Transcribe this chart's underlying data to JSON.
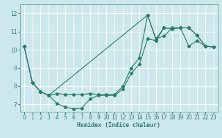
{
  "xlabel": "Humidex (Indice chaleur)",
  "bg_color": "#cde8ec",
  "grid_color": "#ffffff",
  "line_color": "#2d7d6e",
  "xlim": [
    -0.5,
    23.5
  ],
  "ylim": [
    6.6,
    12.5
  ],
  "xticks": [
    0,
    1,
    2,
    3,
    4,
    5,
    6,
    7,
    8,
    9,
    10,
    11,
    12,
    13,
    14,
    15,
    16,
    17,
    18,
    19,
    20,
    21,
    22,
    23
  ],
  "yticks": [
    7,
    8,
    9,
    10,
    11,
    12
  ],
  "curve1_x": [
    0,
    1,
    2,
    3,
    4,
    5,
    6,
    7,
    8,
    9,
    10,
    11,
    12,
    13,
    14,
    15,
    16,
    17,
    18,
    19,
    20,
    21,
    22,
    23
  ],
  "curve1_y": [
    10.2,
    8.2,
    7.7,
    7.5,
    7.05,
    6.85,
    6.75,
    6.8,
    7.3,
    7.5,
    7.5,
    7.5,
    7.85,
    8.7,
    9.2,
    10.6,
    10.5,
    11.2,
    11.15,
    11.2,
    10.2,
    10.5,
    10.2,
    10.15
  ],
  "curve2_x": [
    0,
    1,
    2,
    3,
    4,
    5,
    6,
    7,
    8,
    9,
    10,
    11,
    12,
    13,
    14,
    15,
    16,
    17,
    18,
    19,
    20,
    21,
    22,
    23
  ],
  "curve2_y": [
    10.2,
    8.2,
    7.7,
    7.5,
    7.6,
    7.55,
    7.55,
    7.55,
    7.6,
    7.55,
    7.55,
    7.55,
    8.0,
    9.0,
    9.55,
    11.9,
    10.6,
    10.75,
    11.2,
    11.2,
    11.2,
    10.8,
    10.2,
    10.15
  ],
  "curve3_x": [
    0,
    1,
    2,
    3,
    15,
    16,
    17,
    18,
    19,
    20,
    21,
    22,
    23
  ],
  "curve3_y": [
    10.2,
    8.2,
    7.7,
    7.5,
    11.9,
    10.6,
    11.2,
    11.15,
    11.2,
    11.2,
    10.8,
    10.2,
    10.15
  ],
  "marker": "D",
  "markersize": 2.2,
  "linewidth": 0.85,
  "tick_fontsize": 5.5,
  "xlabel_fontsize": 6.0
}
